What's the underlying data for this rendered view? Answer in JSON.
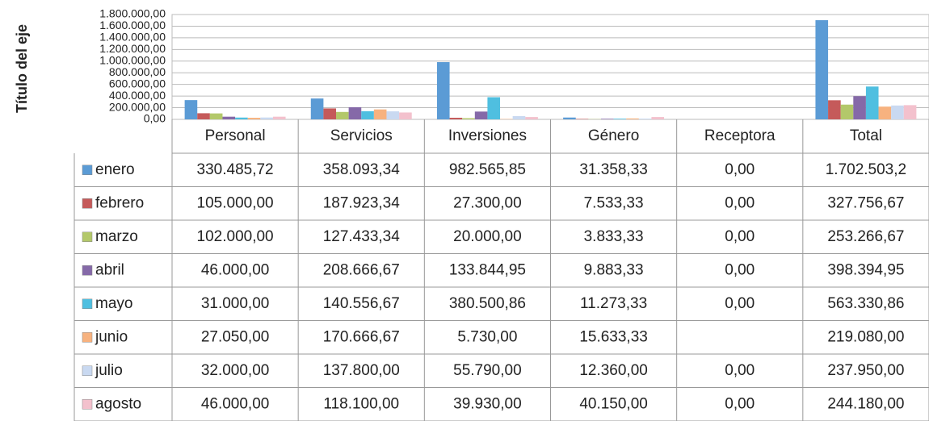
{
  "chart_data": {
    "type": "bar",
    "y_label": "Título del eje",
    "categories": [
      "Personal",
      "Servicios",
      "Inversiones",
      "Género",
      "Receptora",
      "Total"
    ],
    "ylim": [
      0,
      1800000
    ],
    "yticks": [
      {
        "value": 0,
        "label": "0,00"
      },
      {
        "value": 200000,
        "label": "200.000,00"
      },
      {
        "value": 400000,
        "label": "400.000,00"
      },
      {
        "value": 600000,
        "label": "600.000,00"
      },
      {
        "value": 800000,
        "label": "800.000,00"
      },
      {
        "value": 1000000,
        "label": "1.000.000,00"
      },
      {
        "value": 1200000,
        "label": "1.200.000,00"
      },
      {
        "value": 1400000,
        "label": "1.400.000,00"
      },
      {
        "value": 1600000,
        "label": "1.600.000,00"
      },
      {
        "value": 1800000,
        "label": "1.800.000,00"
      }
    ],
    "grid": true,
    "series": [
      {
        "name": "enero",
        "color": "#5b9bd5",
        "values": [
          330485.72,
          358093.34,
          982565.85,
          31358.33,
          0,
          1702503.2
        ],
        "value_labels": [
          "330.485,72",
          "358.093,34",
          "982.565,85",
          "31.358,33",
          "0,00",
          "1.702.503,2"
        ]
      },
      {
        "name": "febrero",
        "color": "#c55a5a",
        "values": [
          105000,
          187923.34,
          27300,
          7533.33,
          0,
          327756.67
        ],
        "value_labels": [
          "105.000,00",
          "187.923,34",
          "27.300,00",
          "7.533,33",
          "0,00",
          "327.756,67"
        ]
      },
      {
        "name": "marzo",
        "color": "#b3c86a",
        "values": [
          102000,
          127433.34,
          20000,
          3833.33,
          0,
          253266.67
        ],
        "value_labels": [
          "102.000,00",
          "127.433,34",
          "20.000,00",
          "3.833,33",
          "0,00",
          "253.266,67"
        ]
      },
      {
        "name": "abril",
        "color": "#8569a8",
        "values": [
          46000,
          208666.67,
          133844.95,
          9883.33,
          0,
          398394.95
        ],
        "value_labels": [
          "46.000,00",
          "208.666,67",
          "133.844,95",
          "9.883,33",
          "0,00",
          "398.394,95"
        ]
      },
      {
        "name": "mayo",
        "color": "#4fbfe0",
        "values": [
          31000,
          140556.67,
          380500.86,
          11273.33,
          0,
          563330.86
        ],
        "value_labels": [
          "31.000,00",
          "140.556,67",
          "380.500,86",
          "11.273,33",
          "0,00",
          "563.330,86"
        ]
      },
      {
        "name": "junio",
        "color": "#f7b27f",
        "values": [
          27050,
          170666.67,
          5730,
          15633.33,
          null,
          219080
        ],
        "value_labels": [
          "27.050,00",
          "170.666,67",
          "5.730,00",
          "15.633,33",
          null,
          "219.080,00"
        ]
      },
      {
        "name": "julio",
        "color": "#c9d9f1",
        "values": [
          32000,
          137800,
          55790,
          12360,
          0,
          237950
        ],
        "value_labels": [
          "32.000,00",
          "137.800,00",
          "55.790,00",
          "12.360,00",
          "0,00",
          "237.950,00"
        ]
      },
      {
        "name": "agosto",
        "color": "#f3c1cd",
        "values": [
          46000,
          118100,
          39930,
          40150,
          0,
          244180
        ],
        "value_labels": [
          "46.000,00",
          "118.100,00",
          "39.930,00",
          "40.150,00",
          "0,00",
          "244.180,00"
        ]
      }
    ]
  }
}
